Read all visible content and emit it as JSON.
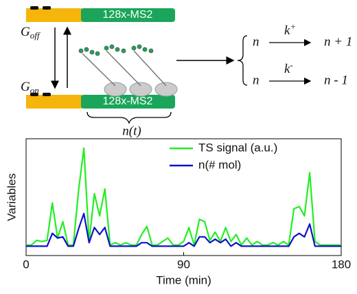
{
  "diagram": {
    "gene_label_top": "128x-MS2",
    "gene_label_bottom": "128x-MS2",
    "g_off": {
      "letter": "G",
      "sub": "off"
    },
    "g_on": {
      "letter": "G",
      "sub": "on"
    },
    "brace_label": "n(t)",
    "reaction_birth": {
      "from": "n",
      "rate": {
        "letter": "k",
        "sup": "+"
      },
      "to": "n + 1"
    },
    "reaction_death": {
      "from": "n",
      "rate": {
        "letter": "k",
        "sup": "-"
      },
      "to": "n - 1"
    }
  },
  "chart_data": {
    "type": "line",
    "xlabel": "Time (min)",
    "ylabel": "Variables",
    "xlim": [
      0,
      180
    ],
    "xticks": [
      0,
      90,
      180
    ],
    "ylim": [
      0,
      10
    ],
    "legend": "upper right",
    "x": [
      0,
      3,
      6,
      9,
      12,
      15,
      18,
      21,
      24,
      27,
      30,
      33,
      36,
      39,
      42,
      45,
      48,
      51,
      54,
      57,
      60,
      63,
      66,
      69,
      72,
      75,
      78,
      81,
      84,
      87,
      90,
      93,
      96,
      99,
      102,
      105,
      108,
      111,
      114,
      117,
      120,
      123,
      126,
      129,
      132,
      135,
      138,
      141,
      144,
      147,
      150,
      153,
      156,
      159,
      162,
      165,
      168,
      171,
      174,
      177,
      180
    ],
    "series": [
      {
        "name": "TS signal (a.u.)",
        "color": "#22ee22",
        "values": [
          0.9,
          0.9,
          1.3,
          1.2,
          1.3,
          4.5,
          1.5,
          2.9,
          0.9,
          0.9,
          5.6,
          9.2,
          1.2,
          5.3,
          3.4,
          5.7,
          0.9,
          1.1,
          0.9,
          1.1,
          0.9,
          0.9,
          1.8,
          2.5,
          0.9,
          0.9,
          1.2,
          1.5,
          0.9,
          0.9,
          1.2,
          2.4,
          0.9,
          3.1,
          2.9,
          1.3,
          2.0,
          1.2,
          2.4,
          1.2,
          1.8,
          0.9,
          1.5,
          0.9,
          1.2,
          0.9,
          0.9,
          1.1,
          0.9,
          1.2,
          0.9,
          4.0,
          4.2,
          3.4,
          7.1,
          1.2,
          0.9,
          0.9,
          0.9,
          0.9,
          0.9
        ]
      },
      {
        "name": "n(# mol)",
        "color": "#1010cc",
        "values": [
          0.8,
          0.8,
          0.8,
          0.8,
          0.8,
          1.9,
          1.5,
          1.6,
          0.8,
          0.8,
          2.3,
          3.6,
          1.1,
          2.4,
          1.8,
          2.4,
          0.8,
          0.8,
          0.8,
          0.8,
          0.8,
          0.8,
          1.1,
          1.1,
          0.8,
          0.8,
          0.8,
          0.8,
          0.8,
          0.8,
          0.8,
          1.1,
          0.8,
          1.6,
          1.6,
          1.1,
          1.4,
          1.1,
          1.4,
          0.8,
          1.1,
          0.8,
          0.8,
          0.8,
          0.8,
          0.8,
          0.8,
          0.8,
          0.8,
          0.8,
          0.8,
          1.6,
          1.9,
          1.6,
          2.7,
          0.8,
          0.8,
          0.8,
          0.8,
          0.8,
          0.8
        ]
      }
    ]
  }
}
